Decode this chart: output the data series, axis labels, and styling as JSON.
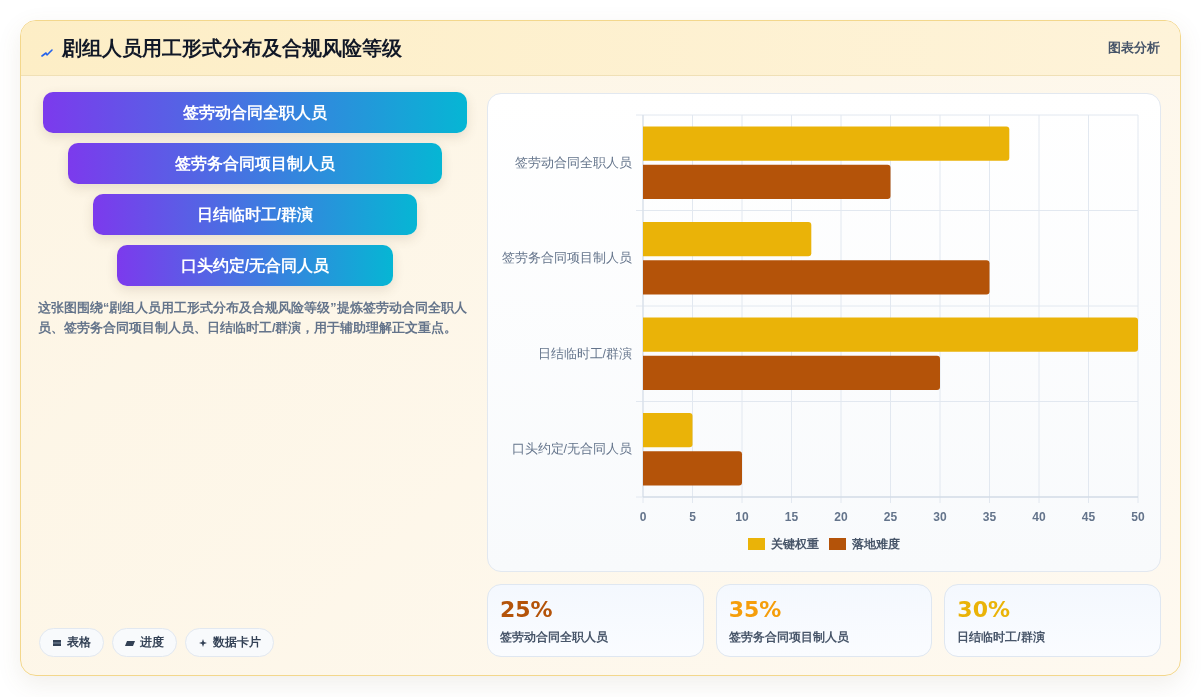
{
  "chart_data": [
    {
      "type": "other",
      "title": "剧组人员用工形式分布及合规风险等级",
      "categories": [
        "签劳动合同全职人员",
        "签劳务合同项目制人员",
        "日结临时工/群演",
        "口头约定/无合同人员"
      ],
      "annotations": [
        "图表分析",
        "这张图围绕“剧组人员用工形式分布及合规风险等级”提炼签劳动合同全职人员、签劳务合同项目制人员、日结临时工/群演，用于辅助理解正文重点。",
        "表格",
        "进度",
        "数据卡片"
      ]
    },
    {
      "type": "bar",
      "orientation": "horizontal",
      "categories": [
        "签劳动合同全职人员",
        "签劳务合同项目制人员",
        "日结临时工/群演",
        "口头约定/无合同人员"
      ],
      "series": [
        {
          "name": "关键权重",
          "color": "#eab308",
          "values": [
            37,
            17,
            50,
            5
          ]
        },
        {
          "name": "落地难度",
          "color": "#b45309",
          "values": [
            25,
            35,
            30,
            10
          ]
        }
      ],
      "xlim": [
        0,
        50
      ],
      "xticks": [
        0,
        5,
        10,
        15,
        20,
        25,
        30,
        35,
        40,
        45,
        50
      ],
      "grid": true,
      "legend": "bottom"
    },
    {
      "type": "other",
      "categories": [
        "签劳动合同全职人员",
        "签劳务合同项目制人员",
        "日结临时工/群演"
      ],
      "value_labels": [
        "25%",
        "35%",
        "30%"
      ]
    }
  ]
}
